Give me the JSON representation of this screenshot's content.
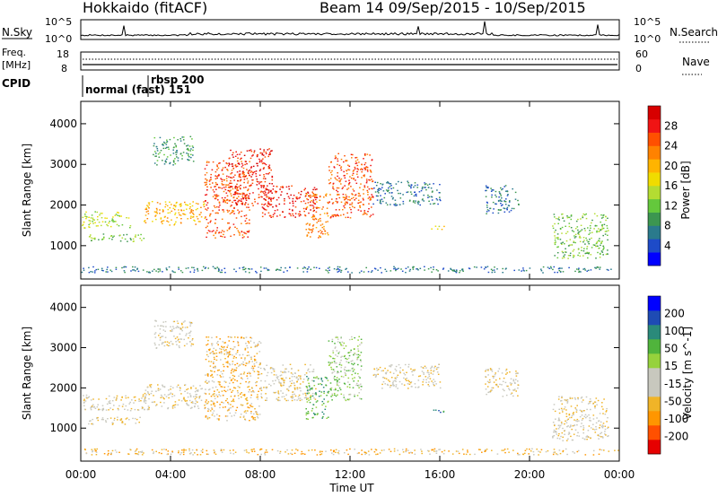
{
  "header": {
    "title": "Hokkaido (fitACF)",
    "beam_info": "Beam 14  09/Sep/2015 - 10/Sep/2015"
  },
  "top_panels": {
    "nsky": {
      "label": "N.Sky",
      "right_label": "N.Search",
      "left_ticks": [
        "10^5",
        "10^0"
      ],
      "right_ticks": [
        "10^5",
        "10^0"
      ]
    },
    "freq": {
      "label": "Freq.",
      "unit": "[MHz]",
      "right_label": "Nave",
      "left_ticks": [
        "18",
        "8"
      ],
      "right_ticks": [
        "60",
        "0"
      ]
    },
    "cpid": {
      "label": "CPID",
      "modes": [
        "normal (fast) 151",
        "rbsp 200"
      ]
    }
  },
  "chart_data": [
    {
      "type": "heatmap",
      "panel": "power",
      "xlabel": "",
      "ylabel": "Slant Range [km]",
      "x_ticks": [
        "00:00",
        "04:00",
        "08:00",
        "12:00",
        "16:00",
        "20:00",
        "00:00"
      ],
      "x_range_hours": [
        0,
        24
      ],
      "y_ticks": [
        1000,
        2000,
        3000,
        4000
      ],
      "ylim": [
        180,
        4550
      ],
      "colorbar": {
        "label": "Power [dB]",
        "ticks": [
          "28",
          "24",
          "20",
          "16",
          "12",
          "8",
          "4"
        ],
        "colors": [
          "#0000ff",
          "#1e4bc8",
          "#2a7a8c",
          "#3c9650",
          "#64c83c",
          "#b4dc32",
          "#f0dc00",
          "#ffb400",
          "#ff8200",
          "#ff5000",
          "#f01414",
          "#d70000"
        ]
      },
      "regions": [
        {
          "x0": 0.0,
          "x1": 2.2,
          "y0": 1450,
          "y1": 1850,
          "level": 5
        },
        {
          "x0": 0.3,
          "x1": 2.8,
          "y0": 1100,
          "y1": 1300,
          "level": 4
        },
        {
          "x0": 2.8,
          "x1": 5.5,
          "y0": 1500,
          "y1": 2100,
          "level": 7
        },
        {
          "x0": 3.2,
          "x1": 5.0,
          "y0": 3000,
          "y1": 3700,
          "level": 3
        },
        {
          "x0": 5.5,
          "x1": 7.5,
          "y0": 1200,
          "y1": 3100,
          "level": 9
        },
        {
          "x0": 6.5,
          "x1": 8.5,
          "y0": 2000,
          "y1": 3400,
          "level": 10
        },
        {
          "x0": 8.0,
          "x1": 10.5,
          "y0": 1700,
          "y1": 2500,
          "level": 10
        },
        {
          "x0": 10.0,
          "x1": 11.0,
          "y0": 1200,
          "y1": 2300,
          "level": 8
        },
        {
          "x0": 11.0,
          "x1": 13.0,
          "y0": 1700,
          "y1": 3300,
          "level": 9
        },
        {
          "x0": 13.0,
          "x1": 16.0,
          "y0": 2000,
          "y1": 2600,
          "level": 2
        },
        {
          "x0": 15.5,
          "x1": 16.2,
          "y0": 1400,
          "y1": 1500,
          "level": 6
        },
        {
          "x0": 18.0,
          "x1": 19.5,
          "y0": 1800,
          "y1": 2500,
          "level": 2
        },
        {
          "x0": 21.0,
          "x1": 23.5,
          "y0": 700,
          "y1": 1800,
          "level": 4
        },
        {
          "x0": 0.0,
          "x1": 24.0,
          "y0": 350,
          "y1": 500,
          "level": 2
        }
      ]
    },
    {
      "type": "heatmap",
      "panel": "velocity",
      "xlabel": "Time UT",
      "ylabel": "Slant Range [km]",
      "x_ticks": [
        "00:00",
        "04:00",
        "08:00",
        "12:00",
        "16:00",
        "20:00",
        "00:00"
      ],
      "x_range_hours": [
        0,
        24
      ],
      "y_ticks": [
        1000,
        2000,
        3000,
        4000
      ],
      "ylim": [
        180,
        4550
      ],
      "colorbar": {
        "label": "Velocity [m s^-1]",
        "ticks": [
          "200",
          "100",
          "50",
          "15",
          "-15",
          "-50",
          "-100",
          "-200"
        ],
        "colors": [
          "#e60000",
          "#ff5000",
          "#ff9600",
          "#f0b428",
          "#c8c8be",
          "#c8c8be",
          "#96d23c",
          "#50b43c",
          "#2a8a7a",
          "#1e4bb4",
          "#0000ff"
        ]
      },
      "regions": [
        {
          "x0": 0.0,
          "x1": 3.0,
          "y0": 1450,
          "y1": 1850,
          "level": 4
        },
        {
          "x0": 0.3,
          "x1": 2.8,
          "y0": 1100,
          "y1": 1300,
          "level": 4
        },
        {
          "x0": 2.8,
          "x1": 5.5,
          "y0": 1500,
          "y1": 2100,
          "level": 4
        },
        {
          "x0": 3.2,
          "x1": 5.0,
          "y0": 3000,
          "y1": 3700,
          "level": 4
        },
        {
          "x0": 5.5,
          "x1": 8.0,
          "y0": 1200,
          "y1": 3300,
          "level": 3
        },
        {
          "x0": 8.0,
          "x1": 10.5,
          "y0": 1700,
          "y1": 2600,
          "level": 4
        },
        {
          "x0": 10.0,
          "x1": 11.0,
          "y0": 1200,
          "y1": 2300,
          "level": 7
        },
        {
          "x0": 11.0,
          "x1": 12.5,
          "y0": 1700,
          "y1": 3300,
          "level": 6
        },
        {
          "x0": 13.0,
          "x1": 16.0,
          "y0": 2000,
          "y1": 2600,
          "level": 4
        },
        {
          "x0": 15.5,
          "x1": 16.2,
          "y0": 1400,
          "y1": 1500,
          "level": 8
        },
        {
          "x0": 18.0,
          "x1": 19.5,
          "y0": 1800,
          "y1": 2500,
          "level": 4
        },
        {
          "x0": 21.0,
          "x1": 23.5,
          "y0": 700,
          "y1": 1800,
          "level": 4
        },
        {
          "x0": 0.0,
          "x1": 24.0,
          "y0": 350,
          "y1": 500,
          "level": 3
        }
      ]
    }
  ]
}
